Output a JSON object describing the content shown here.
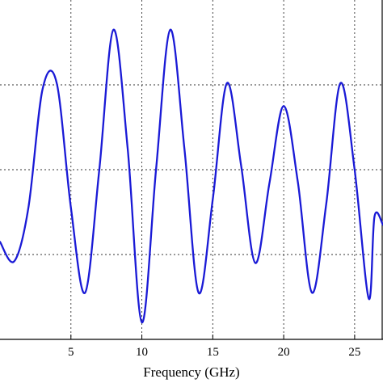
{
  "chart_data": {
    "type": "line",
    "title": "",
    "xlabel": "Frequency (GHz)",
    "ylabel": "",
    "xlim": [
      0,
      27
    ],
    "ylim": [
      0,
      4
    ],
    "x_ticks": [
      5,
      10,
      15,
      20,
      25
    ],
    "x_tick_labels": [
      "5",
      "10",
      "15",
      "20",
      "25"
    ],
    "y_gridlines": [
      1,
      2,
      3
    ],
    "grid": true,
    "grid_style": "dotted",
    "legend": "none",
    "line_color": "#1a1ad6",
    "series": [
      {
        "x": [
          0,
          1,
          2,
          3,
          4,
          5,
          6,
          7,
          8,
          9,
          10,
          11,
          12,
          13,
          14,
          15,
          16,
          17,
          18,
          19,
          20,
          21,
          22,
          23,
          24,
          25,
          26,
          26.4,
          27
        ],
        "y": [
          1.15,
          0.92,
          1.55,
          2.95,
          3.02,
          1.55,
          0.55,
          2.0,
          3.65,
          2.25,
          0.2,
          2.0,
          3.65,
          2.25,
          0.55,
          1.65,
          3.02,
          2.05,
          0.9,
          1.85,
          2.75,
          1.85,
          0.55,
          1.6,
          3.02,
          2.0,
          0.48,
          1.45,
          1.35
        ]
      }
    ]
  }
}
